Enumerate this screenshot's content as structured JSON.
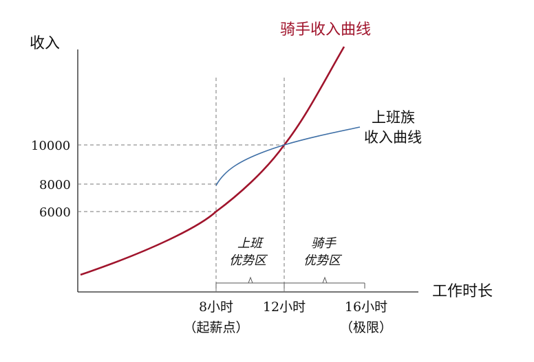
{
  "axes": {
    "y_label": "收入",
    "x_label": "工作时长"
  },
  "y_ticks": [
    {
      "label": "10000"
    },
    {
      "label": "8000"
    },
    {
      "label": "6000"
    }
  ],
  "x_ticks": [
    {
      "label": "8小时",
      "sub": "（起薪点）"
    },
    {
      "label": "12小时",
      "sub": ""
    },
    {
      "label": "16小时",
      "sub": "（极限）"
    }
  ],
  "curves": {
    "rider": {
      "label": "骑手收入曲线",
      "color": "#a0142c"
    },
    "office": {
      "label_line1": "上班族",
      "label_line2": "收入曲线",
      "color": "#3e6fa6"
    }
  },
  "regions": {
    "office_adv_line1": "上班",
    "office_adv_line2": "优势区",
    "rider_adv_line1": "骑手",
    "rider_adv_line2": "优势区"
  },
  "colors": {
    "axis": "#222222",
    "guide": "#777777"
  }
}
